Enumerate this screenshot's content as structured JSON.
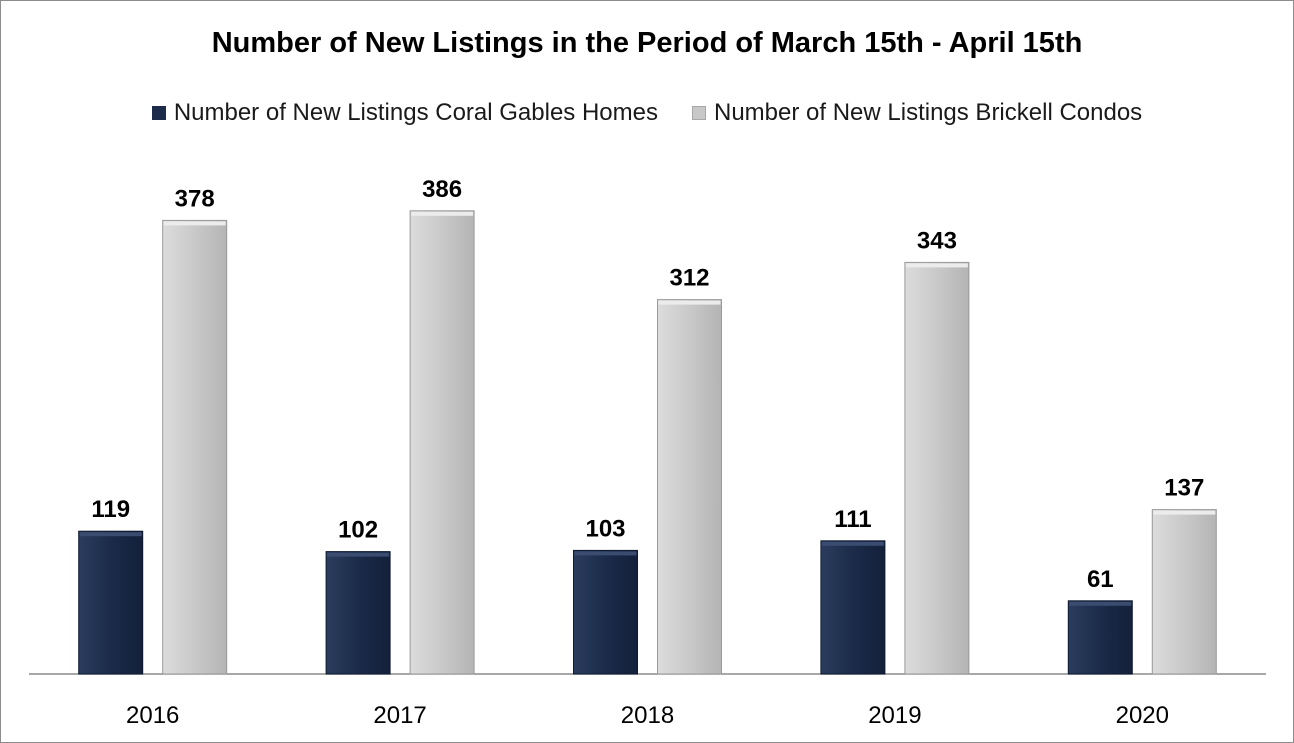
{
  "chart_data": {
    "type": "bar",
    "title": "Number of New Listings in the Period of March 15th - April 15th",
    "xlabel": "",
    "ylabel": "",
    "categories": [
      "2016",
      "2017",
      "2018",
      "2019",
      "2020"
    ],
    "series": [
      {
        "name": "Number of New Listings Coral Gables Homes",
        "values": [
          119,
          102,
          103,
          111,
          61
        ],
        "color": "#1b2b49"
      },
      {
        "name": "Number of New Listings Brickell Condos",
        "values": [
          378,
          386,
          312,
          343,
          137
        ],
        "color": "#c8c8c8"
      }
    ],
    "ylim": [
      0,
      400
    ],
    "grid": false,
    "legend": "top-center",
    "data_labels": true
  }
}
